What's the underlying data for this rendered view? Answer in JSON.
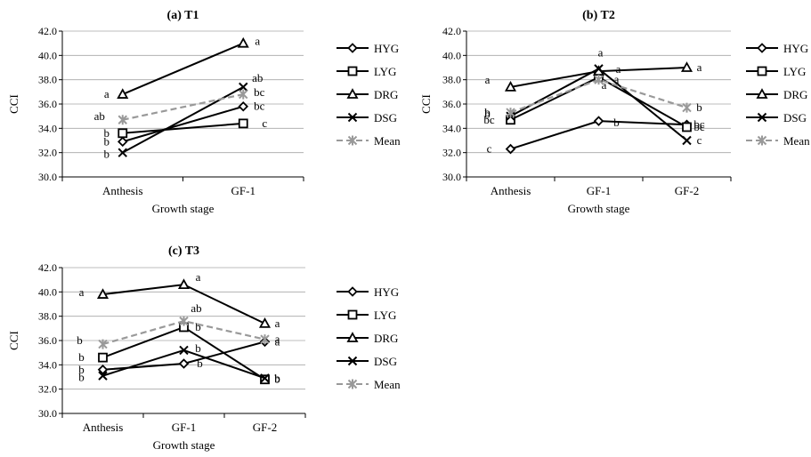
{
  "chart_data": [
    {
      "type": "line",
      "title": "(a) T1",
      "xlabel": "Growth stage",
      "ylabel": "CCI",
      "categories": [
        "Anthesis",
        "GF-1"
      ],
      "ylim": [
        30.0,
        42.0
      ],
      "yticks": [
        "30.0",
        "32.0",
        "34.0",
        "36.0",
        "38.0",
        "40.0",
        "42.0"
      ],
      "grid": true,
      "legend": "right",
      "series": [
        {
          "name": "HYG",
          "marker": "diamond",
          "color": "#000000",
          "dashed": false,
          "values": [
            32.9,
            35.8
          ],
          "labels": [
            "b",
            "bc"
          ]
        },
        {
          "name": "LYG",
          "marker": "square",
          "color": "#000000",
          "dashed": false,
          "values": [
            33.6,
            34.4
          ],
          "labels": [
            "b",
            "c"
          ]
        },
        {
          "name": "DRG",
          "marker": "triangle",
          "color": "#000000",
          "dashed": false,
          "values": [
            36.8,
            41.0
          ],
          "labels": [
            "a",
            "a"
          ]
        },
        {
          "name": "DSG",
          "marker": "x",
          "color": "#000000",
          "dashed": false,
          "values": [
            32.0,
            37.4
          ],
          "labels": [
            "b",
            "ab"
          ]
        },
        {
          "name": "Mean",
          "marker": "star",
          "color": "#999999",
          "dashed": true,
          "values": [
            34.7,
            36.8
          ],
          "labels": [
            "ab",
            "bc"
          ]
        }
      ]
    },
    {
      "type": "line",
      "title": "(b) T2",
      "xlabel": "Growth stage",
      "ylabel": "CCI",
      "categories": [
        "Anthesis",
        "GF-1",
        "GF-2"
      ],
      "ylim": [
        30.0,
        42.0
      ],
      "yticks": [
        "30.0",
        "32.0",
        "34.0",
        "36.0",
        "38.0",
        "40.0",
        "42.0"
      ],
      "grid": true,
      "legend": "right",
      "series": [
        {
          "name": "HYG",
          "marker": "diamond",
          "color": "#000000",
          "dashed": false,
          "values": [
            32.3,
            34.6,
            34.3
          ],
          "labels": [
            "c",
            "b",
            "bc"
          ]
        },
        {
          "name": "LYG",
          "marker": "square",
          "color": "#000000",
          "dashed": false,
          "values": [
            34.7,
            38.2,
            34.1
          ],
          "labels": [
            "bc",
            "a",
            "bc"
          ]
        },
        {
          "name": "DRG",
          "marker": "triangle",
          "color": "#000000",
          "dashed": false,
          "values": [
            37.4,
            38.7,
            39.0
          ],
          "labels": [
            "a",
            "a",
            "a"
          ]
        },
        {
          "name": "DSG",
          "marker": "x",
          "color": "#000000",
          "dashed": false,
          "values": [
            35.0,
            38.9,
            33.0
          ],
          "labels": [
            "b",
            "a",
            "c"
          ]
        },
        {
          "name": "Mean",
          "marker": "star",
          "color": "#999999",
          "dashed": true,
          "values": [
            35.3,
            38.0,
            35.7
          ],
          "labels": [
            "b",
            "a",
            "b"
          ]
        }
      ]
    },
    {
      "type": "line",
      "title": "(c) T3",
      "xlabel": "Growth stage",
      "ylabel": "CCI",
      "categories": [
        "Anthesis",
        "GF-1",
        "GF-2"
      ],
      "ylim": [
        30.0,
        42.0
      ],
      "yticks": [
        "30.0",
        "32.0",
        "34.0",
        "36.0",
        "38.0",
        "40.0",
        "42.0"
      ],
      "grid": true,
      "legend": "right",
      "series": [
        {
          "name": "HYG",
          "marker": "diamond",
          "color": "#000000",
          "dashed": false,
          "values": [
            33.6,
            34.1,
            35.9
          ],
          "labels": [
            "b",
            "b",
            "a"
          ]
        },
        {
          "name": "LYG",
          "marker": "square",
          "color": "#000000",
          "dashed": false,
          "values": [
            34.6,
            37.1,
            32.8
          ],
          "labels": [
            "b",
            "b",
            "b"
          ]
        },
        {
          "name": "DRG",
          "marker": "triangle",
          "color": "#000000",
          "dashed": false,
          "values": [
            39.8,
            40.6,
            37.4
          ],
          "labels": [
            "a",
            "a",
            "a"
          ]
        },
        {
          "name": "DSG",
          "marker": "x",
          "color": "#000000",
          "dashed": false,
          "values": [
            33.1,
            35.2,
            32.9
          ],
          "labels": [
            "b",
            "b",
            "b"
          ]
        },
        {
          "name": "Mean",
          "marker": "star",
          "color": "#999999",
          "dashed": true,
          "values": [
            35.7,
            37.6,
            36.1
          ],
          "labels": [
            "b",
            "ab",
            "a"
          ]
        }
      ]
    }
  ]
}
